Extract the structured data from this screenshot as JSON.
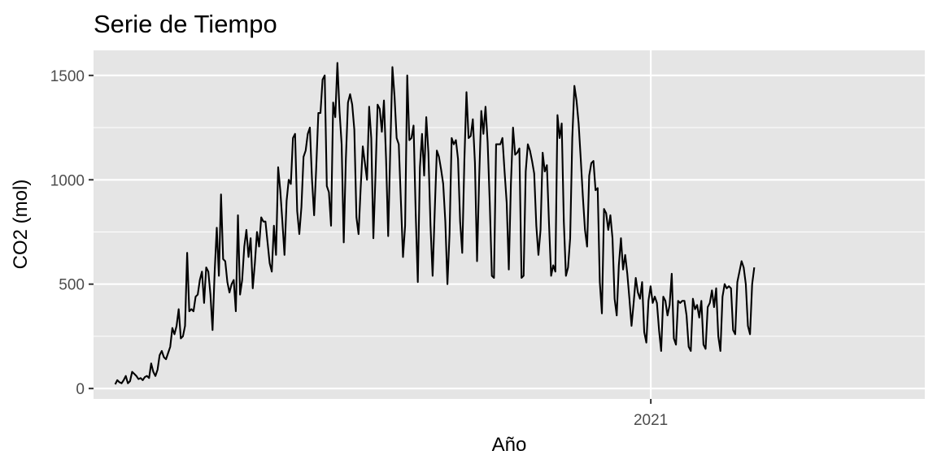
{
  "chart_data": {
    "type": "line",
    "title": "Serie de Tiempo",
    "xlabel": "Año",
    "ylabel": "CO2 (mol)",
    "x_ticks": [
      {
        "label": "2021",
        "value": "2021-01-01"
      }
    ],
    "y_ticks": [
      0,
      500,
      1000,
      1500
    ],
    "ylim": [
      -50,
      1620
    ],
    "xlim": [
      "2020-01-07",
      "2021-06-27"
    ],
    "grid": true,
    "background": "#e5e5e5",
    "line_color": "#000000",
    "series": [
      {
        "x_start": "2020-01-21",
        "x_step_days": 1.367,
        "values": [
          20,
          40,
          30,
          25,
          40,
          60,
          25,
          35,
          80,
          70,
          60,
          45,
          50,
          40,
          55,
          60,
          50,
          120,
          80,
          60,
          90,
          160,
          180,
          150,
          140,
          170,
          200,
          290,
          260,
          300,
          380,
          240,
          250,
          300,
          650,
          370,
          380,
          370,
          440,
          450,
          520,
          560,
          410,
          580,
          560,
          450,
          280,
          560,
          770,
          540,
          930,
          620,
          610,
          510,
          460,
          500,
          520,
          370,
          830,
          450,
          520,
          680,
          760,
          630,
          720,
          480,
          600,
          750,
          680,
          820,
          800,
          800,
          700,
          600,
          560,
          780,
          640,
          1060,
          950,
          800,
          640,
          900,
          1000,
          980,
          1200,
          1220,
          850,
          740,
          870,
          1110,
          1140,
          1220,
          1250,
          1000,
          830,
          1060,
          1320,
          1320,
          1480,
          1500,
          970,
          940,
          780,
          1370,
          1300,
          1560,
          1330,
          1170,
          700,
          1100,
          1370,
          1410,
          1360,
          1240,
          820,
          740,
          960,
          1160,
          1080,
          1000,
          1350,
          1200,
          720,
          1020,
          1360,
          1340,
          1230,
          1380,
          1100,
          730,
          1150,
          1540,
          1400,
          1200,
          1170,
          900,
          630,
          780,
          1500,
          1190,
          1200,
          1260,
          840,
          510,
          1060,
          1220,
          1020,
          1300,
          1130,
          780,
          540,
          850,
          1140,
          1110,
          1050,
          980,
          800,
          500,
          740,
          1200,
          1170,
          1190,
          1100,
          800,
          650,
          1090,
          1420,
          1200,
          1210,
          1290,
          1080,
          610,
          1010,
          1330,
          1220,
          1350,
          1180,
          890,
          540,
          530,
          1170,
          1170,
          1170,
          1200,
          1040,
          890,
          570,
          980,
          1250,
          1120,
          1130,
          1150,
          530,
          540,
          1040,
          1170,
          1140,
          1090,
          1030,
          780,
          640,
          760,
          1130,
          1040,
          1070,
          790,
          540,
          590,
          560,
          1310,
          1200,
          1270,
          800,
          540,
          580,
          720,
          1200,
          1450,
          1380,
          1270,
          1100,
          920,
          760,
          680,
          1020,
          1080,
          1090,
          950,
          960,
          510,
          360,
          860,
          840,
          760,
          830,
          720,
          430,
          350,
          590,
          720,
          570,
          640,
          550,
          430,
          300,
          410,
          530,
          460,
          430,
          510,
          270,
          220,
          420,
          490,
          410,
          440,
          410,
          280,
          180,
          440,
          420,
          350,
          400,
          550,
          240,
          210,
          420,
          410,
          420,
          420,
          350,
          200,
          180,
          430,
          380,
          400,
          340,
          420,
          210,
          190,
          390,
          410,
          470,
          390,
          480,
          250,
          180,
          440,
          500,
          480,
          490,
          480,
          280,
          260,
          510,
          560,
          610,
          580,
          500,
          300,
          260,
          500,
          580
        ]
      }
    ]
  }
}
